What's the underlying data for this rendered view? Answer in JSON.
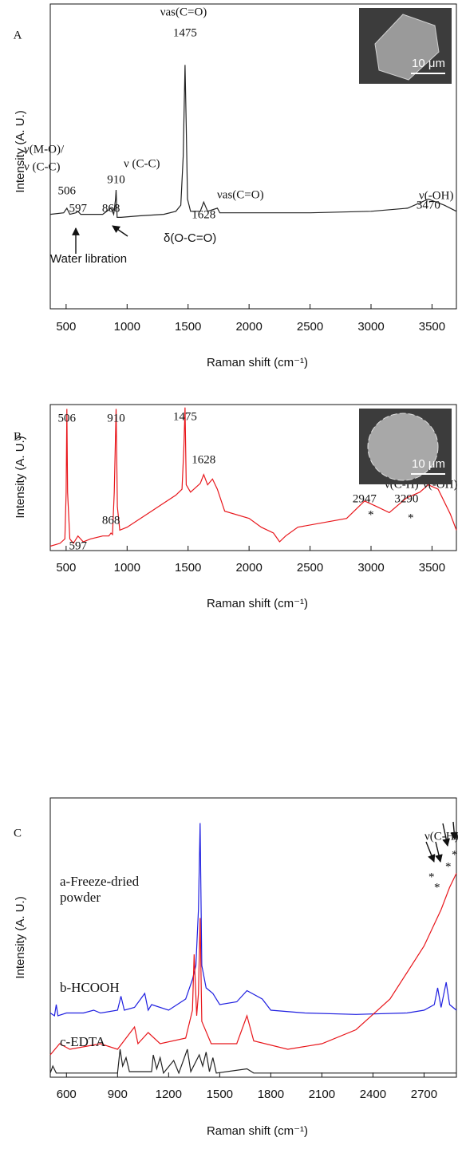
{
  "chart_data": [
    {
      "type": "line",
      "panel_label": "A",
      "x_label": "Raman shift (cm⁻¹)",
      "y_label": "Intensity (A. U.)",
      "xlim": [
        370,
        3700
      ],
      "xticks": [
        500,
        1000,
        1500,
        2000,
        2500,
        3000,
        3500
      ],
      "ylim": [
        0,
        100
      ],
      "series": [
        {
          "color": "#222222",
          "x": [
            370,
            480,
            506,
            530,
            580,
            597,
            620,
            800,
            868,
            890,
            905,
            910,
            918,
            950,
            1100,
            1300,
            1400,
            1440,
            1460,
            1475,
            1485,
            1495,
            1520,
            1600,
            1628,
            1660,
            1740,
            1760,
            2000,
            2500,
            3000,
            3300,
            3470,
            3600,
            3700
          ],
          "values": [
            31,
            31.5,
            33,
            31,
            31.5,
            32,
            31,
            31,
            33,
            31,
            36,
            39,
            30,
            30,
            30.5,
            31,
            32,
            34,
            50,
            80,
            60,
            36,
            32,
            32,
            35,
            32,
            33,
            31.5,
            31.5,
            31.5,
            32,
            33,
            36,
            34,
            32
          ]
        }
      ],
      "peak_labels": [
        506,
        597,
        868,
        910,
        1475,
        1628,
        3470
      ],
      "annotations": [
        "νas(C=O)",
        "ν(M-O)/",
        "ν (C-C)",
        "ν (C-C)",
        "νas(C=O)",
        "ν(-OH)",
        "δ(O-C=O)",
        "Water libration"
      ],
      "inset_scale": "10 μm"
    },
    {
      "type": "line",
      "panel_label": "B",
      "x_label": "Raman shift (cm⁻¹)",
      "y_label": "Intensity (A. U.)",
      "xlim": [
        370,
        3700
      ],
      "xticks": [
        500,
        1000,
        1500,
        2000,
        2500,
        3000,
        3500
      ],
      "ylim": [
        0,
        100
      ],
      "series": [
        {
          "color": "#e8161b",
          "x": [
            370,
            450,
            490,
            500,
            506,
            512,
            530,
            560,
            597,
            640,
            700,
            800,
            850,
            868,
            880,
            895,
            910,
            920,
            940,
            1000,
            1200,
            1400,
            1450,
            1465,
            1475,
            1485,
            1520,
            1600,
            1628,
            1660,
            1700,
            1740,
            1800,
            2000,
            2100,
            2200,
            2250,
            2300,
            2400,
            2600,
            2800,
            2947,
            3050,
            3150,
            3290,
            3400,
            3470,
            3550,
            3650,
            3700
          ],
          "values": [
            3,
            5,
            8,
            40,
            97,
            40,
            8,
            5,
            10,
            6,
            8,
            10,
            10,
            12,
            11,
            40,
            97,
            30,
            14,
            16,
            27,
            38,
            42,
            70,
            98,
            45,
            40,
            46,
            52,
            45,
            49,
            42,
            27,
            22,
            16,
            12,
            6,
            10,
            16,
            19,
            22,
            34,
            30,
            26,
            36,
            40,
            45,
            42,
            25,
            14
          ]
        }
      ],
      "peak_labels": [
        506,
        910,
        1475,
        1628,
        868,
        597,
        2947,
        3290
      ],
      "annotations": [
        "ν(C-H)",
        "ν(-OH)",
        "*",
        "*"
      ],
      "inset_scale": "10 μm"
    },
    {
      "type": "line",
      "panel_label": "C",
      "x_label": "Raman shift (cm⁻¹)",
      "y_label": "Intensity (A. U.)",
      "xlim": [
        505,
        2890
      ],
      "xticks": [
        600,
        900,
        1200,
        1500,
        1800,
        2100,
        2400,
        2700
      ],
      "ylim": [
        0,
        100
      ],
      "series": [
        {
          "name": "a-Freeze-dried powder",
          "color": "#1f1fe0",
          "x": [
            505,
            530,
            540,
            550,
            600,
            700,
            760,
            800,
            900,
            920,
            940,
            1000,
            1060,
            1080,
            1100,
            1200,
            1300,
            1340,
            1360,
            1375,
            1385,
            1395,
            1420,
            1460,
            1500,
            1600,
            1660,
            1750,
            1800,
            2000,
            2300,
            2600,
            2700,
            2760,
            2780,
            2800,
            2830,
            2850,
            2890
          ],
          "values": [
            23,
            22,
            26,
            22,
            23,
            23,
            24,
            23,
            24,
            29,
            24,
            25,
            30,
            24,
            26,
            24,
            28,
            35,
            40,
            60,
            91,
            40,
            32,
            30,
            26,
            27,
            31,
            28,
            24,
            23,
            22.5,
            23,
            24,
            26,
            32,
            25,
            34,
            26,
            24
          ]
        },
        {
          "name": "b-HCOOH",
          "color": "#e8161b",
          "x": [
            505,
            560,
            620,
            800,
            900,
            1000,
            1020,
            1080,
            1150,
            1300,
            1340,
            1350,
            1365,
            1375,
            1385,
            1395,
            1450,
            1600,
            1660,
            1700,
            1900,
            2100,
            2300,
            2500,
            2700,
            2800,
            2850,
            2890
          ],
          "values": [
            8,
            12,
            10,
            12,
            10,
            18,
            12,
            16,
            12,
            14,
            24,
            44,
            22,
            30,
            57,
            20,
            12,
            12,
            22,
            13,
            10,
            12,
            17,
            28,
            47,
            60,
            68,
            73
          ]
        },
        {
          "name": "c-EDTA",
          "color": "#222222",
          "x": [
            505,
            520,
            540,
            900,
            915,
            930,
            950,
            970,
            1100,
            1110,
            1130,
            1150,
            1170,
            1230,
            1260,
            1310,
            1330,
            1380,
            1400,
            1420,
            1440,
            1460,
            1480,
            1660,
            1700,
            2890
          ],
          "values": [
            1.5,
            4,
            1.5,
            1.5,
            10,
            4,
            7,
            2,
            2,
            8,
            3,
            7,
            1.5,
            6,
            1.5,
            10,
            2,
            8,
            4,
            9,
            2,
            7,
            1.5,
            3,
            1.5,
            1.5
          ]
        }
      ],
      "peak_labels": [],
      "annotations": [
        "ν(C-H)",
        "*",
        "*",
        "*",
        "*"
      ]
    }
  ]
}
